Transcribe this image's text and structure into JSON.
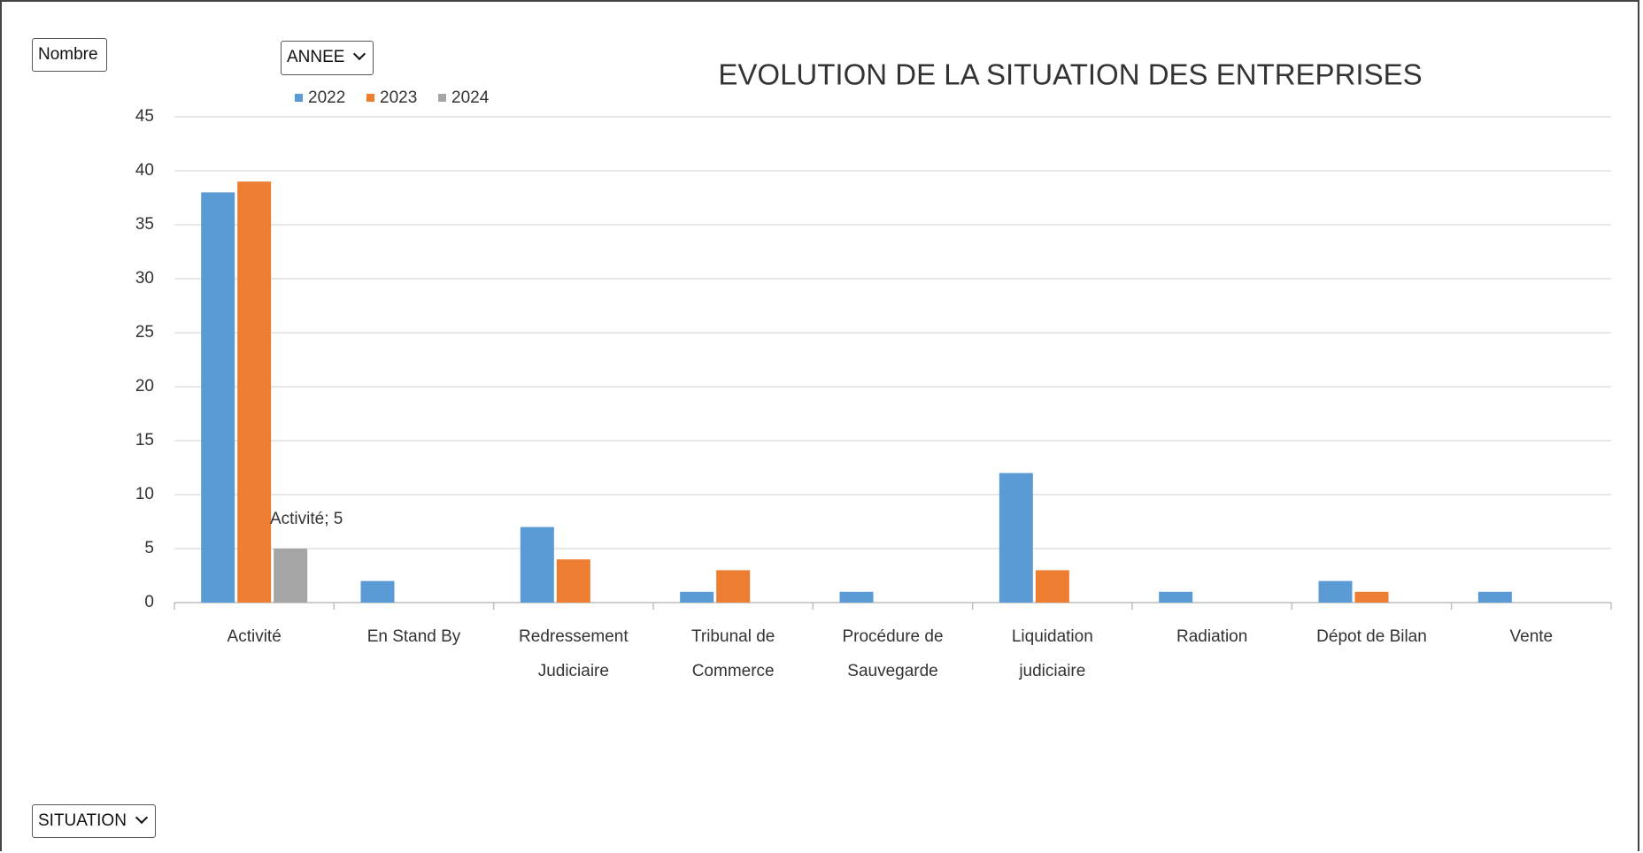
{
  "controls": {
    "measure": "Nombre",
    "year_filter": "ANNEE",
    "axis_filter": "SITUATION"
  },
  "chart_data": {
    "type": "bar",
    "title": "EVOLUTION DE LA SITUATION DES ENTREPRISES",
    "categories": [
      "Activité",
      "En Stand By",
      "Redressement\nJudiciaire",
      "Tribunal de\nCommerce",
      "Procédure de\nSauvegarde",
      "Liquidation\njudiciaire",
      "Radiation",
      "Dépot de Bilan",
      "Vente"
    ],
    "series": [
      {
        "name": "2022",
        "color": "#5b9bd5",
        "values": [
          38,
          2,
          7,
          1,
          1,
          12,
          1,
          2,
          1
        ]
      },
      {
        "name": "2023",
        "color": "#ed7d31",
        "values": [
          39,
          null,
          4,
          3,
          null,
          3,
          null,
          1,
          null
        ]
      },
      {
        "name": "2024",
        "color": "#a5a5a5",
        "values": [
          5,
          null,
          null,
          null,
          null,
          null,
          null,
          null,
          null
        ],
        "value_labels": [
          "Activité; 5",
          null,
          null,
          null,
          null,
          null,
          null,
          null,
          null
        ]
      }
    ],
    "ylim": [
      0,
      45
    ],
    "yticks": [
      0,
      5,
      10,
      15,
      20,
      25,
      30,
      35,
      40,
      45
    ],
    "grid": true,
    "legend": "top-left"
  }
}
